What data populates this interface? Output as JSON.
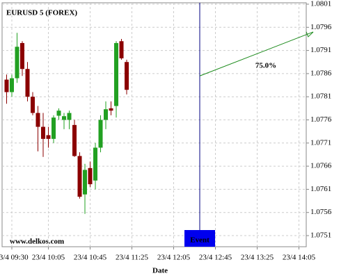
{
  "chart_data": {
    "type": "candlestick",
    "title": "EURUSD 5 (FOREX)",
    "watermark": "www.delkos.com",
    "x_label": "Date",
    "categories": [
      null,
      "23/4 09:30",
      null,
      null,
      null,
      null,
      null,
      null,
      "23/4 10:05",
      null,
      null,
      null,
      null,
      null,
      null,
      null,
      "23/4 10:45",
      null,
      null,
      null,
      null,
      null,
      null,
      null,
      "23/4 11:25",
      null,
      null,
      null,
      null,
      null,
      null,
      null,
      "23/4 12:05",
      null,
      null,
      null,
      null,
      null,
      null,
      null,
      "23/4 12:45",
      null,
      null,
      null,
      null,
      null,
      null,
      null,
      "23/4 13:25",
      null,
      null,
      null,
      null,
      null,
      null,
      null,
      "23/4 14:05",
      null
    ],
    "open": [
      1.07847,
      1.0782,
      1.0785,
      1.07926,
      1.0787,
      1.0781,
      1.07775,
      1.07745,
      1.07727,
      1.07719,
      1.07769,
      1.0776,
      1.0776,
      1.07749,
      1.07682,
      1.07599,
      1.07656,
      1.07629,
      1.077,
      1.0776,
      1.07785,
      1.0779,
      1.0793,
      1.07885,
      null,
      null,
      null,
      null,
      null,
      null,
      null,
      null,
      null,
      null,
      null,
      null,
      null,
      null,
      null,
      null,
      null,
      null,
      null,
      null,
      null,
      null,
      null,
      null,
      null,
      null,
      null,
      null,
      null,
      null,
      null,
      null,
      null,
      null
    ],
    "high": [
      1.07858,
      1.07858,
      1.07948,
      1.0793,
      1.07885,
      1.0782,
      1.0779,
      1.07775,
      1.07745,
      1.0777,
      1.07785,
      1.07775,
      1.0778,
      1.0776,
      1.0769,
      1.07665,
      1.0767,
      1.0771,
      1.0777,
      1.078,
      1.078,
      1.0793,
      1.07935,
      1.0789,
      null,
      null,
      null,
      null,
      null,
      null,
      null,
      null,
      null,
      null,
      null,
      null,
      null,
      null,
      null,
      null,
      null,
      null,
      null,
      null,
      null,
      null,
      null,
      null,
      null,
      null,
      null,
      null,
      null,
      null,
      null,
      null,
      null,
      null
    ],
    "low": [
      1.07795,
      1.0781,
      1.0784,
      1.07855,
      1.078,
      1.0777,
      1.07692,
      1.0768,
      1.077,
      1.0771,
      1.0776,
      1.0774,
      1.0774,
      1.0768,
      1.0759,
      1.07557,
      1.07615,
      1.0761,
      1.0769,
      1.0774,
      1.0777,
      1.07765,
      1.0789,
      1.07815,
      null,
      null,
      null,
      null,
      null,
      null,
      null,
      null,
      null,
      null,
      null,
      null,
      null,
      null,
      null,
      null,
      null,
      null,
      null,
      null,
      null,
      null,
      null,
      null,
      null,
      null,
      null,
      null,
      null,
      null,
      null,
      null,
      null,
      null
    ],
    "close": [
      1.0782,
      1.0785,
      1.07918,
      1.0787,
      1.0781,
      1.07775,
      1.07745,
      1.07719,
      1.07719,
      1.07765,
      1.0778,
      1.07768,
      1.07775,
      1.07682,
      1.07594,
      1.07652,
      1.07621,
      1.077,
      1.0776,
      1.07783,
      1.0778,
      1.07926,
      1.07893,
      1.07825,
      null,
      null,
      null,
      null,
      null,
      null,
      null,
      null,
      null,
      null,
      null,
      null,
      null,
      null,
      null,
      null,
      null,
      null,
      null,
      null,
      null,
      null,
      null,
      null,
      null,
      null,
      null,
      null,
      null,
      null,
      null,
      null,
      null,
      null
    ],
    "up_color": "#22a022",
    "down_color": "#8b0000",
    "ylim": [
      1.07486,
      1.08013
    ],
    "yticks": [
      1.0751,
      1.0756,
      1.0761,
      1.0766,
      1.0771,
      1.0776,
      1.0781,
      1.0786,
      1.0791,
      1.0796,
      1.0801
    ],
    "grid": true,
    "event": {
      "label": "Event",
      "index": 37
    },
    "forecast": {
      "label": "75.0%",
      "from": 1.07855,
      "to": 1.0795,
      "color": "#1a8a1a"
    }
  }
}
